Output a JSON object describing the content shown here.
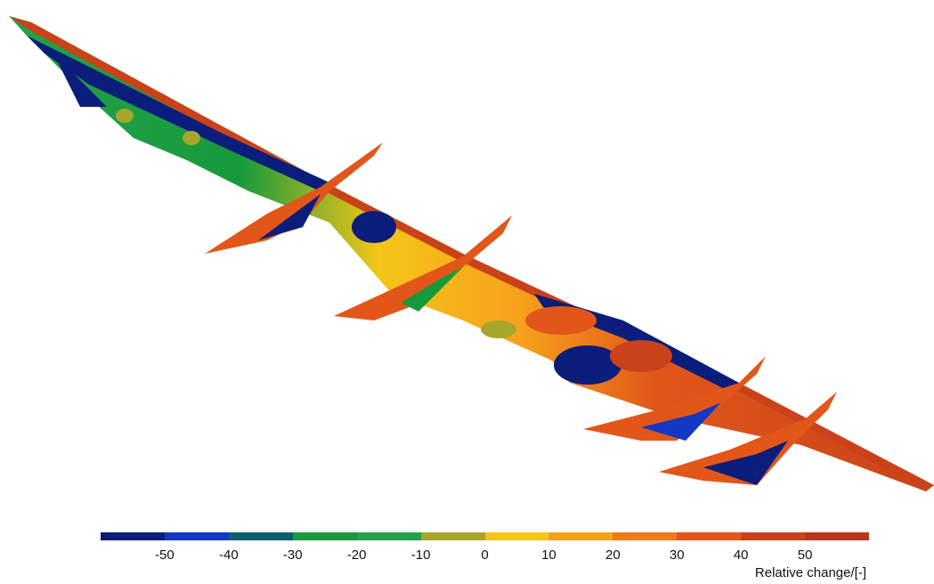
{
  "colorbar": {
    "title": "Relative change/[-]",
    "ticks": [
      "-50",
      "-40",
      "-30",
      "-20",
      "-10",
      "0",
      "10",
      "20",
      "30",
      "40",
      "50"
    ],
    "colors": [
      "#0a1d7a",
      "#1338c4",
      "#0d5e6e",
      "#179a3c",
      "#22a24a",
      "#a8a62a",
      "#f5c518",
      "#f7a21c",
      "#f07a1a",
      "#e2561a",
      "#c9421a",
      "#b8371c"
    ]
  }
}
